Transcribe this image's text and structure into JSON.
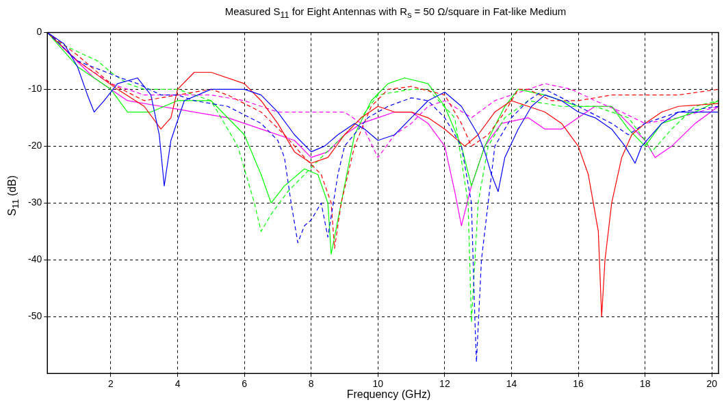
{
  "chart_data": {
    "type": "line",
    "title": "Measured S$_{11}$ for Eight Antennas with R$_{s}$ = 50 Ω/square in Fat-like Medium",
    "xlabel": "Frequency (GHz)",
    "ylabel": "S$_{11}$ (dB)",
    "xlim": [
      0.1,
      20.2
    ],
    "ylim": [
      -60,
      0
    ],
    "xticks": [
      2,
      4,
      6,
      8,
      10,
      12,
      14,
      16,
      18,
      20
    ],
    "yticks": [
      0,
      -10,
      -20,
      -30,
      -40,
      -50
    ],
    "grid": true,
    "legend": false,
    "marker": "none",
    "series": [
      {
        "color": "#0000ff",
        "line_style": "solid",
        "x": [
          0.1,
          0.6,
          1.0,
          1.3,
          1.5,
          1.8,
          2.2,
          2.8,
          3.2,
          3.45,
          3.6,
          3.8,
          4.2,
          5.0,
          6.0,
          6.5,
          7.0,
          7.5,
          8.0,
          8.4,
          8.8,
          9.3,
          9.6,
          10.0,
          10.5,
          11.0,
          11.5,
          12.0,
          12.5,
          13.0,
          13.2,
          13.4,
          13.6,
          13.8,
          14.2,
          14.6,
          15.0,
          15.5,
          16.0,
          16.5,
          17.0,
          17.4,
          17.7,
          17.9,
          18.5,
          19.0,
          19.6,
          20.2
        ],
        "values": [
          0,
          -2,
          -6,
          -11,
          -14,
          -12,
          -9,
          -8,
          -11,
          -18,
          -27,
          -19,
          -12,
          -10,
          -10,
          -11,
          -14,
          -18,
          -21,
          -20,
          -18,
          -16,
          -17,
          -19,
          -18,
          -15,
          -12,
          -10.5,
          -13,
          -18,
          -21,
          -25,
          -28,
          -22,
          -17,
          -13,
          -11,
          -12,
          -14,
          -15,
          -17,
          -20,
          -23,
          -20,
          -16,
          -14,
          -14,
          -14
        ]
      },
      {
        "color": "#0000ff",
        "line_style": "dashed",
        "x": [
          0.1,
          1.0,
          2.3,
          2.8,
          3.5,
          4.0,
          4.5,
          5.5,
          6.5,
          7.0,
          7.2,
          7.4,
          7.6,
          7.8,
          8.0,
          8.3,
          8.5,
          8.8,
          9.0,
          9.7,
          10.3,
          11.0,
          11.5,
          12.0,
          12.5,
          12.8,
          12.9,
          12.95,
          13.1,
          13.3,
          13.5,
          14.0,
          14.5,
          15.0,
          16.0,
          17.0,
          17.5,
          18.0,
          19.0,
          20.2
        ],
        "values": [
          0,
          -5,
          -8,
          -9,
          -11,
          -11,
          -12,
          -13,
          -16,
          -19,
          -22,
          -30,
          -37,
          -34,
          -33,
          -30,
          -36,
          -25,
          -20,
          -15,
          -13,
          -11.5,
          -12,
          -15,
          -20,
          -30,
          -50,
          -58,
          -40,
          -30,
          -20,
          -15,
          -12,
          -10,
          -13,
          -16,
          -18,
          -16,
          -14,
          -13
        ]
      },
      {
        "color": "#ff0000",
        "line_style": "solid",
        "x": [
          0.1,
          1.0,
          2.2,
          3.0,
          3.5,
          3.8,
          4.0,
          4.5,
          5.0,
          6.0,
          6.5,
          7.0,
          7.5,
          8.0,
          8.5,
          9.0,
          9.5,
          10.0,
          10.5,
          11.0,
          11.5,
          12.0,
          12.6,
          13.0,
          13.5,
          14.0,
          14.5,
          15.0,
          15.5,
          16.0,
          16.3,
          16.6,
          16.7,
          16.8,
          17.0,
          17.3,
          17.6,
          18.0,
          18.5,
          19.0,
          20.2
        ],
        "values": [
          0,
          -5,
          -10,
          -13,
          -17,
          -15,
          -10,
          -7,
          -7,
          -9,
          -12,
          -16,
          -21,
          -23,
          -22,
          -18,
          -15,
          -13,
          -14,
          -14,
          -15,
          -17,
          -20,
          -18,
          -14,
          -12,
          -13,
          -14,
          -16,
          -20,
          -25,
          -35,
          -50,
          -40,
          -30,
          -22,
          -18,
          -16,
          -14,
          -13,
          -12.5
        ]
      },
      {
        "color": "#ff0000",
        "line_style": "dashed",
        "x": [
          0.1,
          1.0,
          2.0,
          3.0,
          4.0,
          5.0,
          5.5,
          6.5,
          7.2,
          7.8,
          8.3,
          8.6,
          8.7,
          8.9,
          9.3,
          9.8,
          10.3,
          11.0,
          12.0,
          12.5,
          12.8,
          13.3,
          13.8,
          14.2,
          14.5,
          15.2,
          16.0,
          17.0,
          18.0,
          19.0,
          20.2
        ],
        "values": [
          0,
          -4,
          -9,
          -12,
          -11,
          -10,
          -11,
          -14,
          -18,
          -22,
          -25,
          -30,
          -38,
          -30,
          -20,
          -13,
          -10,
          -9.5,
          -11,
          -16,
          -20,
          -18,
          -14,
          -10,
          -10,
          -12,
          -12,
          -11,
          -11,
          -11,
          -10
        ]
      },
      {
        "color": "#00ff00",
        "line_style": "solid",
        "x": [
          0.1,
          1.0,
          2.0,
          2.5,
          3.2,
          4.0,
          5.0,
          6.0,
          6.5,
          6.8,
          7.2,
          7.8,
          8.2,
          8.5,
          8.6,
          8.9,
          9.3,
          9.8,
          10.3,
          10.8,
          11.5,
          12.0,
          12.5,
          12.8,
          13.2,
          13.8,
          14.2,
          15.0,
          16.0,
          17.0,
          17.5,
          18.0,
          18.5,
          19.5,
          20.2
        ],
        "values": [
          0,
          -6,
          -10,
          -14,
          -14,
          -12,
          -12,
          -18,
          -25,
          -30,
          -27,
          -24,
          -25,
          -30,
          -39,
          -30,
          -18,
          -12,
          -9,
          -8,
          -9,
          -13,
          -20,
          -27,
          -20,
          -13,
          -10,
          -11,
          -13,
          -13,
          -17,
          -20,
          -16,
          -14,
          -12
        ]
      },
      {
        "color": "#00ff00",
        "line_style": "dashed",
        "x": [
          0.1,
          0.5,
          1.6,
          2.0,
          2.5,
          3.0,
          4.0,
          5.0,
          5.8,
          6.3,
          6.5,
          6.8,
          7.3,
          7.8,
          8.3,
          9.0,
          9.5,
          10.0,
          11.0,
          11.5,
          12.3,
          12.7,
          12.8,
          13.0,
          13.3,
          13.8,
          14.5,
          15.5,
          16.5,
          17.5,
          18.0,
          18.2,
          18.8,
          19.5,
          20.2
        ],
        "values": [
          0,
          -2,
          -5,
          -7,
          -9,
          -10,
          -10,
          -12,
          -20,
          -30,
          -35,
          -32,
          -28,
          -25,
          -22,
          -18,
          -15,
          -11,
          -10,
          -10,
          -15,
          -30,
          -51,
          -30,
          -20,
          -15,
          -12,
          -13,
          -13,
          -15,
          -19,
          -21,
          -17,
          -13,
          -12
        ]
      },
      {
        "color": "#ff00ff",
        "line_style": "solid",
        "x": [
          0.1,
          1.5,
          2.5,
          3.5,
          4.5,
          5.5,
          6.5,
          7.5,
          8.0,
          8.5,
          9.0,
          9.5,
          10.0,
          10.5,
          11.0,
          11.5,
          12.0,
          12.3,
          12.5,
          12.8,
          13.2,
          13.7,
          14.5,
          15.0,
          15.5,
          16.0,
          16.5,
          17.0,
          17.5,
          18.0,
          18.3,
          18.8,
          19.5,
          20.2
        ],
        "values": [
          0,
          -8,
          -12,
          -13,
          -14,
          -15,
          -17,
          -19,
          -22,
          -21,
          -18,
          -16,
          -15,
          -14,
          -14,
          -16,
          -20,
          -28,
          -34,
          -27,
          -20,
          -16,
          -15,
          -17,
          -17,
          -15,
          -13,
          -13,
          -16,
          -19,
          -22,
          -20,
          -16,
          -13
        ]
      },
      {
        "color": "#ff00ff",
        "line_style": "dashed",
        "x": [
          0.1,
          1.0,
          2.0,
          3.0,
          4.0,
          5.0,
          6.0,
          7.0,
          8.0,
          9.0,
          9.5,
          10.0,
          10.5,
          11.0,
          11.5,
          12.0,
          12.8,
          13.5,
          14.5,
          15.0,
          15.8,
          16.5,
          17.3,
          18.0,
          19.0,
          20.2
        ],
        "values": [
          0,
          -5,
          -9,
          -11,
          -11,
          -11,
          -12,
          -14,
          -14,
          -14,
          -16,
          -22,
          -18,
          -16,
          -13,
          -12,
          -15,
          -12,
          -10,
          -9,
          -10,
          -12,
          -14,
          -16,
          -15,
          -13
        ]
      }
    ]
  }
}
